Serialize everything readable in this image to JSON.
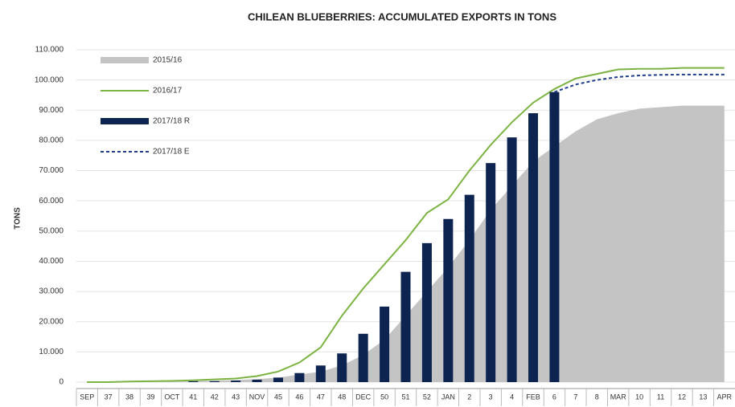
{
  "chart_data": {
    "type": "line",
    "title": "CHILEAN BLUEBERRIES: ACCUMULATED EXPORTS IN TONS",
    "y_label": "TONS",
    "categories": [
      "SEP",
      "37",
      "38",
      "39",
      "OCT",
      "41",
      "42",
      "43",
      "NOV",
      "45",
      "46",
      "47",
      "48",
      "DEC",
      "50",
      "51",
      "52",
      "JAN",
      "2",
      "3",
      "4",
      "FEB",
      "6",
      "7",
      "8",
      "MAR",
      "10",
      "11",
      "12",
      "13",
      "APR"
    ],
    "ylim": [
      0,
      110000
    ],
    "yticks": [
      0,
      {
        "value": 10000,
        "label": "10.000"
      },
      {
        "value": 20000,
        "label": "20.000"
      },
      {
        "value": 30000,
        "label": "30.000"
      },
      {
        "value": 40000,
        "label": "40.000"
      },
      {
        "value": 50000,
        "label": "50.000"
      },
      {
        "value": 60000,
        "label": "60.000"
      },
      {
        "value": 70000,
        "label": "70.000"
      },
      {
        "value": 80000,
        "label": "80.000"
      },
      {
        "value": 90000,
        "label": "90.000"
      },
      {
        "value": 100000,
        "label": "100.000"
      },
      {
        "value": 110000,
        "label": "110.000"
      }
    ],
    "grid": true,
    "legend": "upper left",
    "series": [
      {
        "name": "2015/16",
        "kind": "area",
        "color": "#c4c4c4",
        "values": [
          0,
          0,
          0,
          0,
          100,
          300,
          500,
          700,
          1000,
          1500,
          2500,
          3500,
          5500,
          9000,
          14000,
          22000,
          30000,
          38000,
          47000,
          57000,
          65000,
          73000,
          78000,
          83000,
          87000,
          89000,
          90500,
          91000,
          91500,
          91500,
          91500
        ]
      },
      {
        "name": "2016/17",
        "kind": "line",
        "color": "#7cb342",
        "values": [
          0,
          0,
          200,
          300,
          400,
          600,
          900,
          1200,
          2000,
          3500,
          6500,
          11500,
          22000,
          31000,
          39000,
          47000,
          56000,
          60500,
          70000,
          78500,
          86000,
          92500,
          97000,
          100500,
          102000,
          103500,
          103700,
          103700,
          104000,
          104000,
          104000
        ]
      },
      {
        "name": "2017/18 R",
        "kind": "bar",
        "color": "#0d2350",
        "values": [
          0,
          0,
          0,
          0,
          0,
          300,
          300,
          500,
          800,
          1500,
          3000,
          5500,
          9500,
          16000,
          25000,
          36500,
          46000,
          54000,
          62000,
          72500,
          81000,
          89000,
          96000,
          null,
          null,
          null,
          null,
          null,
          null,
          null,
          null
        ]
      },
      {
        "name": "2017/18 E",
        "kind": "line",
        "style": "dashed",
        "color": "#1f3d8a",
        "values": [
          null,
          null,
          null,
          null,
          null,
          null,
          null,
          null,
          null,
          null,
          null,
          null,
          null,
          null,
          null,
          null,
          null,
          null,
          null,
          null,
          null,
          null,
          96000,
          98500,
          100000,
          101000,
          101500,
          101700,
          101800,
          101800,
          101800
        ]
      }
    ]
  }
}
